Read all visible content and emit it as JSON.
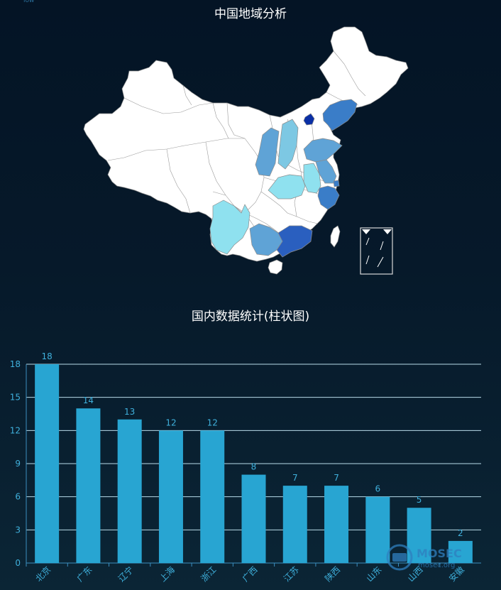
{
  "map": {
    "title": "中国地域分析",
    "top_left_text": "low",
    "colors": {
      "base": "#ffffff",
      "border": "#8c8c8c",
      "l1": "#8fe1ef",
      "l2": "#7dc8e3",
      "l3": "#5fa3d6",
      "l4": "#3a7dc8",
      "l5": "#2a5fbf",
      "l6": "#0a2fa5"
    }
  },
  "chart_data": {
    "type": "bar",
    "title": "国内数据统计(柱状图)",
    "categories": [
      "北京",
      "广东",
      "辽宁",
      "上海",
      "浙江",
      "广西",
      "江苏",
      "陕西",
      "山东",
      "山西",
      "安徽"
    ],
    "values": [
      18,
      14,
      13,
      12,
      12,
      8,
      7,
      7,
      6,
      5,
      2
    ],
    "ylim": [
      0,
      18
    ],
    "yticks": [
      0,
      3,
      6,
      9,
      12,
      15,
      18
    ],
    "grid": true,
    "bar_color": "#28a5d2",
    "label_color": "#3fb0dc",
    "tick_color": "#3fb0dc",
    "xlabel": "",
    "ylabel": ""
  },
  "watermark": {
    "brand": "MOSEC",
    "url": "mosec.org"
  }
}
